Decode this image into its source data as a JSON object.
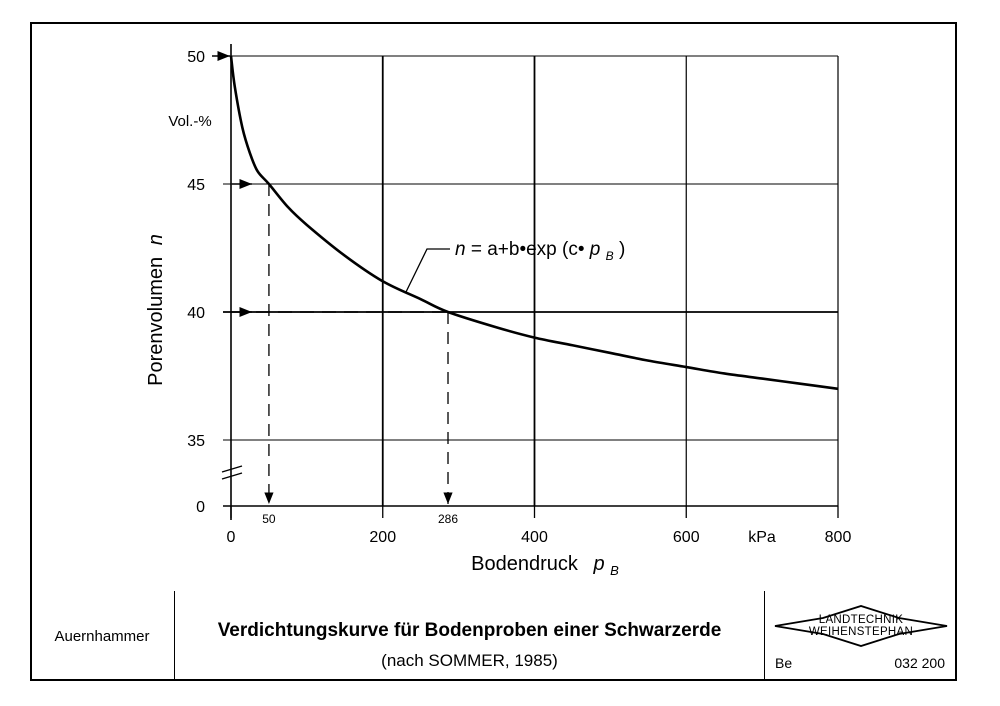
{
  "chart_data": {
    "type": "line",
    "ylabel": "Porenvolumen",
    "ylabel_symbol": "n",
    "y_unit": "Vol.-%",
    "xlabel": "Bodendruck",
    "xlabel_symbol": "p",
    "xlabel_subscript": "B",
    "x_unit": "kPa",
    "x_ticks": [
      "0",
      "200",
      "400",
      "600",
      "800"
    ],
    "x_tick_values": [
      0,
      200,
      400,
      600,
      800
    ],
    "y_ticks": [
      "50",
      "45",
      "40",
      "35",
      "0"
    ],
    "y_tick_values": [
      50,
      45,
      40,
      35,
      0
    ],
    "y_axis_break": true,
    "xlim": [
      0,
      800
    ],
    "ylim": [
      35,
      50
    ],
    "grid": true,
    "series": [
      {
        "equation": "n = a+b•exp (c•p_B)",
        "x": [
          0,
          5,
          15,
          25,
          35,
          50,
          75,
          100,
          150,
          200,
          250,
          286,
          350,
          400,
          450,
          500,
          550,
          600,
          650,
          700,
          750,
          800
        ],
        "y": [
          50,
          48.8,
          47.2,
          46.2,
          45.5,
          45.0,
          44.1,
          43.4,
          42.2,
          41.2,
          40.5,
          40.0,
          39.4,
          39.0,
          38.7,
          38.4,
          38.1,
          37.85,
          37.6,
          37.4,
          37.2,
          37.0
        ]
      }
    ],
    "annotations": {
      "equation_label": {
        "n": "n",
        "text": " = a+b•exp (c•",
        "p": "p",
        "sub": "B",
        "close": ")"
      },
      "markers": [
        {
          "y": 45,
          "x": 50,
          "label": "50"
        },
        {
          "y": 40,
          "x": 286,
          "label": "286"
        }
      ],
      "y50_arrow": 50
    }
  },
  "footer": {
    "author": "Auernhammer",
    "title": "Verdichtungskurve für Bodenproben einer Schwarzerde",
    "subtitle": "(nach SOMMER, 1985)",
    "logo_line1": "LANDTECHNIK",
    "logo_line2": "WEIHENSTEPHAN",
    "code_left": "Be",
    "code_right": "032 200"
  }
}
